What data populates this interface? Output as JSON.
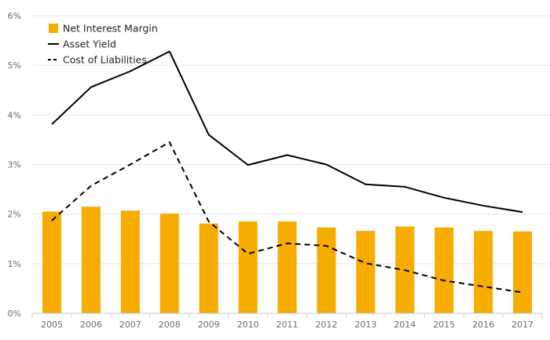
{
  "chart_data": {
    "type": "bar",
    "categories": [
      "2005",
      "2006",
      "2007",
      "2008",
      "2009",
      "2010",
      "2011",
      "2012",
      "2013",
      "2014",
      "2015",
      "2016",
      "2017"
    ],
    "ylim": [
      0,
      6
    ],
    "y_ticks": [
      0,
      1,
      2,
      3,
      4,
      5,
      6
    ],
    "y_tick_labels": [
      "0%",
      "1%",
      "2%",
      "3%",
      "4%",
      "5%",
      "6%"
    ],
    "grid": true,
    "legend_position": "top-left",
    "series": [
      {
        "name": "Net Interest Margin",
        "type": "bar",
        "color": "#f7ac00",
        "values": [
          2.05,
          2.15,
          2.07,
          2.01,
          1.81,
          1.85,
          1.85,
          1.73,
          1.66,
          1.75,
          1.73,
          1.66,
          1.65
        ]
      },
      {
        "name": "Asset Yield",
        "type": "line",
        "style": "solid",
        "color": "#000000",
        "values": [
          3.81,
          4.56,
          4.88,
          5.28,
          3.6,
          2.99,
          3.19,
          3.0,
          2.6,
          2.55,
          2.33,
          2.17,
          2.04
        ]
      },
      {
        "name": "Cost of Liabilities",
        "type": "line",
        "style": "dashed",
        "color": "#000000",
        "values": [
          1.87,
          2.57,
          3.0,
          3.45,
          1.85,
          1.2,
          1.41,
          1.36,
          1.01,
          0.87,
          0.66,
          0.54,
          0.42
        ]
      }
    ]
  }
}
